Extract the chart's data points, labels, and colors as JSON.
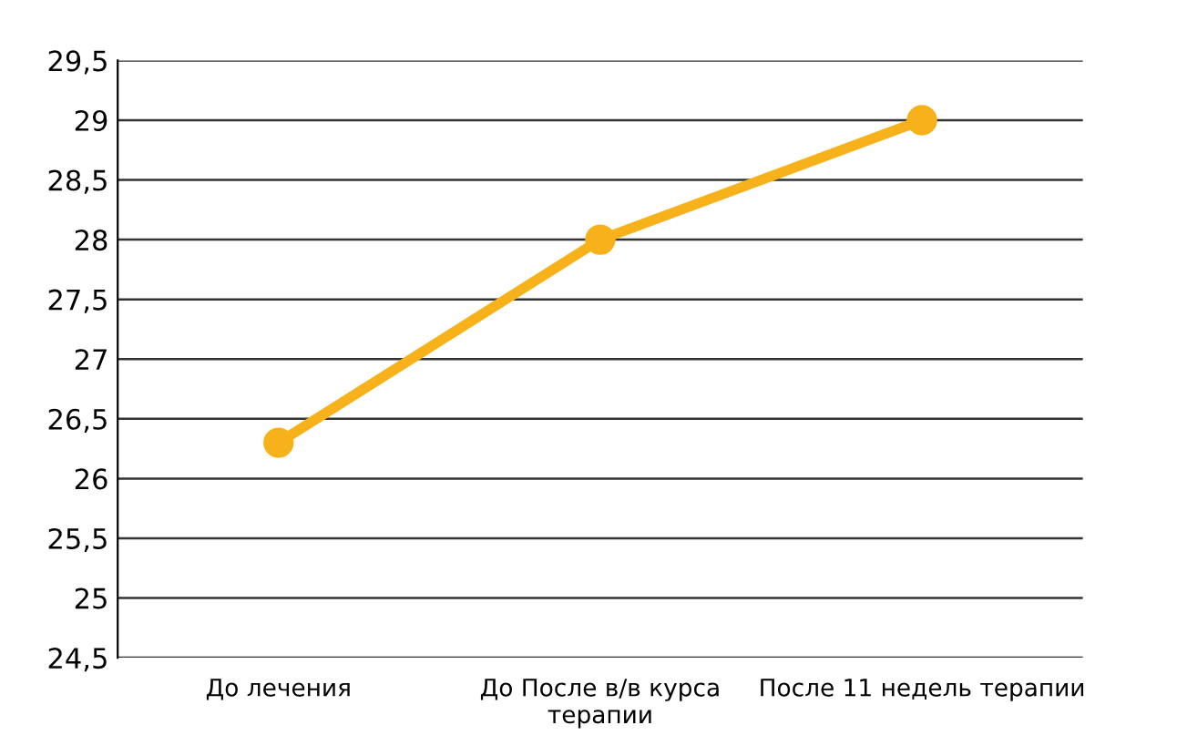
{
  "chart_data": {
    "type": "line",
    "categories": [
      "До лечения",
      "До После в/в курса\nтерапии",
      "После 11 недель терапии"
    ],
    "series": [
      {
        "color": "#f7b21b",
        "values": [
          26.3,
          28.0,
          29.0
        ]
      }
    ],
    "ylim": [
      24.5,
      29.5
    ],
    "yticks": [
      {
        "value": 24.5,
        "label": "24,5"
      },
      25,
      {
        "value": 25.5,
        "label": "25,5"
      },
      26,
      {
        "value": 26.5,
        "label": "26,5"
      },
      27,
      {
        "value": 27.5,
        "label": "27,5"
      },
      28,
      {
        "value": 28.5,
        "label": "28,5"
      },
      29,
      {
        "value": 29.5,
        "label": "29,5"
      }
    ],
    "grid": "y",
    "marker": "circle",
    "line_style": "solid",
    "legend": false
  }
}
